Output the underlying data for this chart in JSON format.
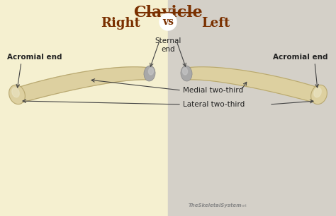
{
  "title": "Clavicle",
  "subtitle_left": "Right",
  "subtitle_vs": "vs",
  "subtitle_right": "Left",
  "bg_left_color": "#f5f0d0",
  "bg_right_color": "#d4d0c8",
  "title_color": "#7a3000",
  "label_color": "#222222",
  "arrow_color": "#444444",
  "vs_circle_color": "#ffffff",
  "labels": {
    "sternal_end": "Sternal\nend",
    "acromial_end_left": "Acromial end",
    "acromial_end_right": "Acromial end",
    "medial_two_third": "Medial two-third",
    "lateral_two_third": "Lateral two-third"
  },
  "watermark": "TheSkeletalSystem",
  "watermark_suffix": ".net",
  "bone_color": "#ddd0a0",
  "bone_light": "#ede8cc",
  "bone_shadow": "#b8a870",
  "gray_tip_color": "#a8a8a8",
  "gray_tip_light": "#c8c8c8"
}
